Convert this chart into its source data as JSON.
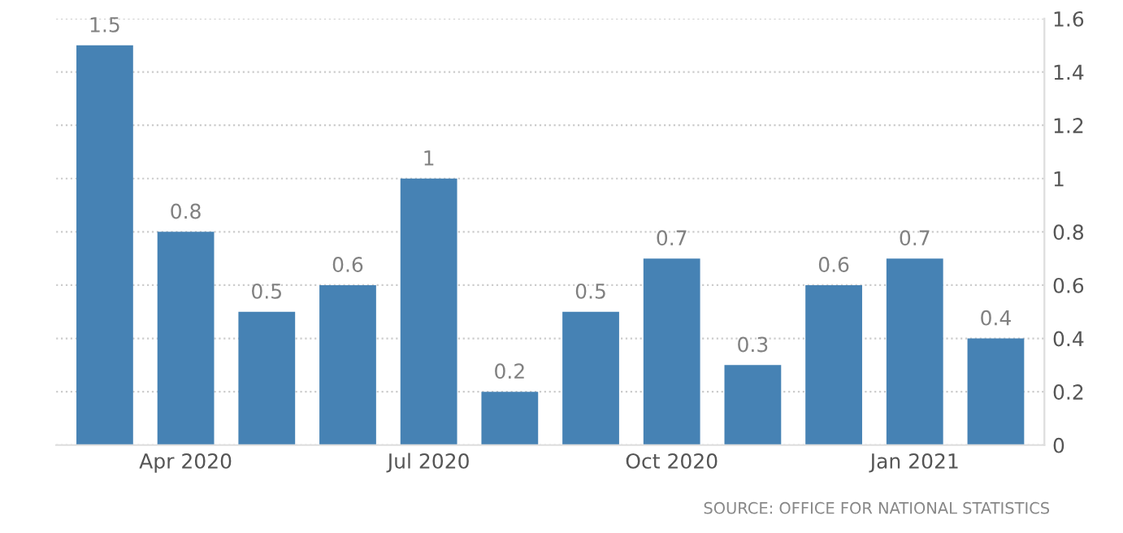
{
  "chart_data": {
    "type": "bar",
    "categories": [
      null,
      "Apr 2020",
      null,
      null,
      "Jul 2020",
      null,
      null,
      "Oct 2020",
      null,
      null,
      "Jan 2021",
      null
    ],
    "values": [
      1.5,
      0.8,
      0.5,
      0.6,
      1,
      0.2,
      0.5,
      0.7,
      0.3,
      0.6,
      0.7,
      0.4
    ],
    "color": "#4682b4",
    "ylim": [
      0,
      1.6
    ],
    "yticks": [
      0,
      0.2,
      0.4,
      0.6,
      0.8,
      1,
      1.2,
      1.4,
      1.6
    ],
    "grid": "y",
    "data_labels": true,
    "legend": false,
    "annotations": [
      "SOURCE: OFFICE FOR NATIONAL STATISTICS"
    ]
  }
}
